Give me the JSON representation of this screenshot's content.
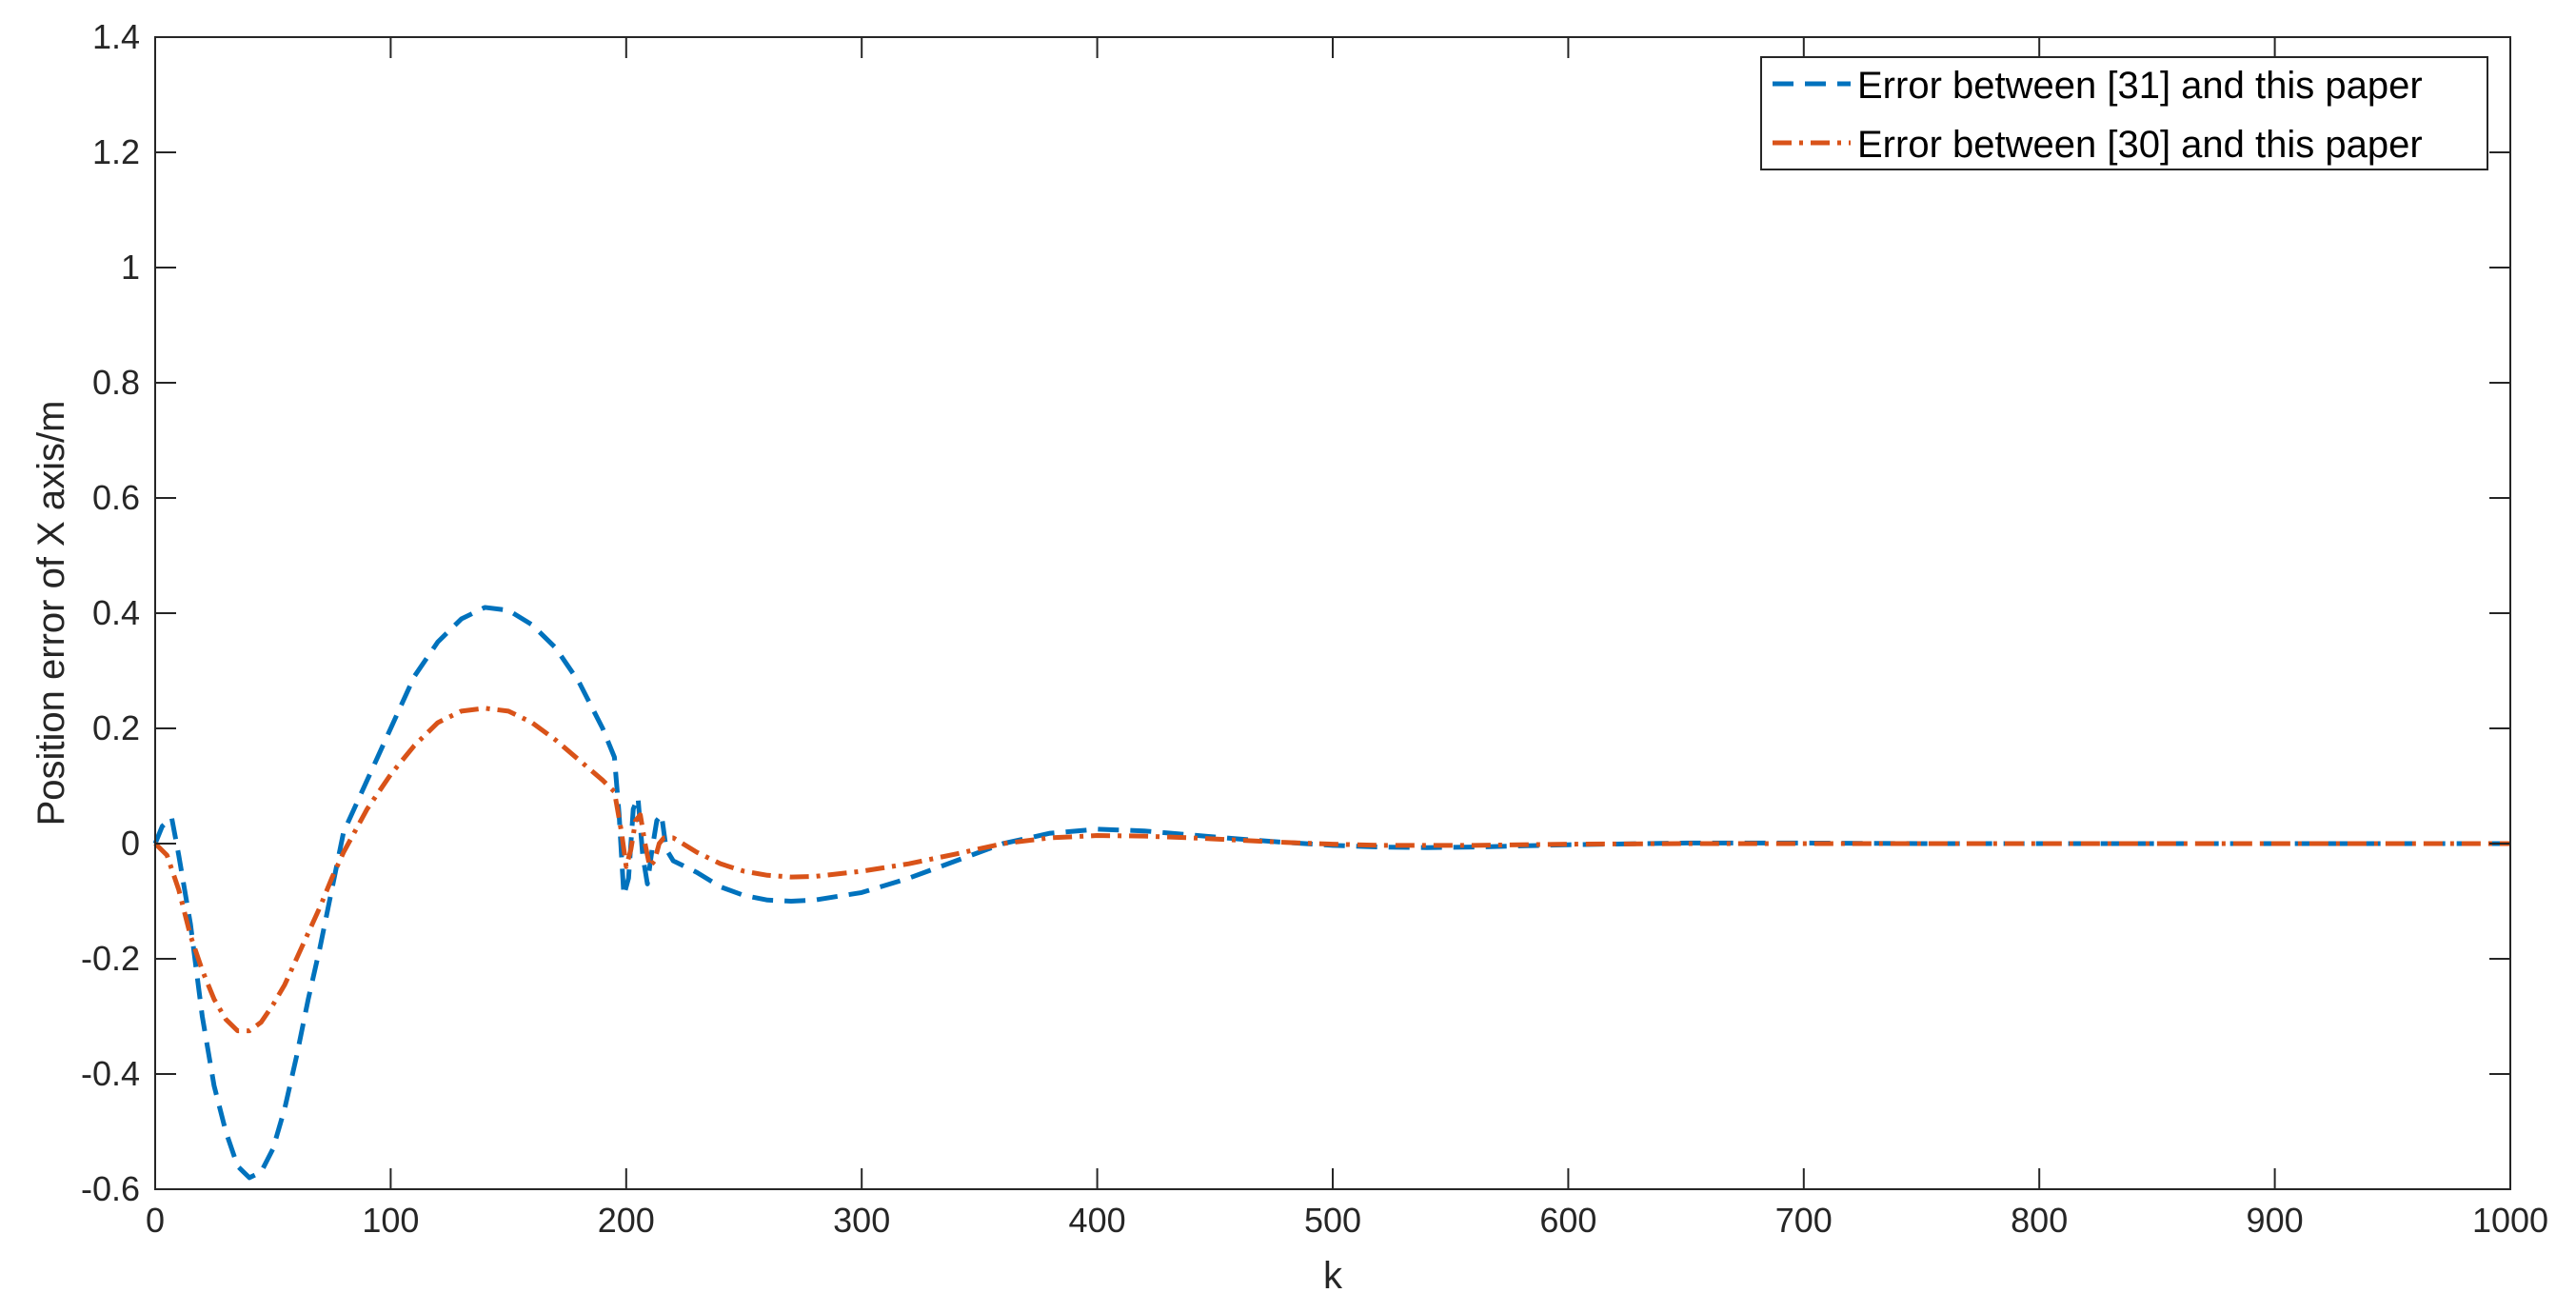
{
  "chart_data": {
    "type": "line",
    "title": "",
    "xlabel": "k",
    "ylabel": "Position error of X axis/m",
    "xlim": [
      0,
      1000
    ],
    "ylim": [
      -0.6,
      1.4
    ],
    "xticks": [
      0,
      100,
      200,
      300,
      400,
      500,
      600,
      700,
      800,
      900,
      1000
    ],
    "yticks": [
      -0.6,
      -0.4,
      -0.2,
      0,
      0.2,
      0.4,
      0.6,
      0.8,
      1,
      1.2,
      1.4
    ],
    "xtick_labels": [
      "0",
      "100",
      "200",
      "300",
      "400",
      "500",
      "600",
      "700",
      "800",
      "900",
      "1000"
    ],
    "ytick_labels": [
      "-0.6",
      "-0.4",
      "-0.2",
      "0",
      "0.2",
      "0.4",
      "0.6",
      "0.8",
      "1",
      "1.2",
      "1.4"
    ],
    "grid": false,
    "legend_position": "top-right",
    "series": [
      {
        "name": "Error between [31] and this paper",
        "color": "#0072BD",
        "line_style": "dashed",
        "points": [
          [
            0,
            0
          ],
          [
            3,
            0.03
          ],
          [
            7,
            0.045
          ],
          [
            10,
            -0.02
          ],
          [
            15,
            -0.14
          ],
          [
            20,
            -0.3
          ],
          [
            25,
            -0.42
          ],
          [
            30,
            -0.5
          ],
          [
            35,
            -0.56
          ],
          [
            40,
            -0.58
          ],
          [
            45,
            -0.57
          ],
          [
            50,
            -0.53
          ],
          [
            55,
            -0.46
          ],
          [
            60,
            -0.37
          ],
          [
            65,
            -0.27
          ],
          [
            70,
            -0.18
          ],
          [
            75,
            -0.08
          ],
          [
            80,
            0.02
          ],
          [
            90,
            0.11
          ],
          [
            100,
            0.2
          ],
          [
            110,
            0.29
          ],
          [
            120,
            0.35
          ],
          [
            130,
            0.39
          ],
          [
            140,
            0.41
          ],
          [
            150,
            0.405
          ],
          [
            160,
            0.38
          ],
          [
            170,
            0.34
          ],
          [
            180,
            0.28
          ],
          [
            190,
            0.2
          ],
          [
            195,
            0.15
          ],
          [
            197,
            0.05
          ],
          [
            199,
            -0.09
          ],
          [
            201,
            -0.06
          ],
          [
            203,
            0.06
          ],
          [
            205,
            0.08
          ],
          [
            207,
            -0.02
          ],
          [
            209,
            -0.07
          ],
          [
            211,
            -0.01
          ],
          [
            213,
            0.04
          ],
          [
            215,
            0.05
          ],
          [
            217,
            -0.01
          ],
          [
            220,
            -0.03
          ],
          [
            230,
            -0.05
          ],
          [
            240,
            -0.075
          ],
          [
            250,
            -0.09
          ],
          [
            260,
            -0.098
          ],
          [
            270,
            -0.1
          ],
          [
            280,
            -0.098
          ],
          [
            300,
            -0.085
          ],
          [
            320,
            -0.06
          ],
          [
            340,
            -0.03
          ],
          [
            360,
            0.0
          ],
          [
            380,
            0.018
          ],
          [
            400,
            0.025
          ],
          [
            420,
            0.022
          ],
          [
            440,
            0.015
          ],
          [
            460,
            0.008
          ],
          [
            480,
            0.002
          ],
          [
            500,
            -0.003
          ],
          [
            520,
            -0.006
          ],
          [
            540,
            -0.007
          ],
          [
            560,
            -0.006
          ],
          [
            580,
            -0.004
          ],
          [
            600,
            -0.002
          ],
          [
            650,
            0.001
          ],
          [
            700,
            0.001
          ],
          [
            750,
            0.0
          ],
          [
            800,
            0.0
          ],
          [
            900,
            0.0
          ],
          [
            1000,
            0.0
          ]
        ]
      },
      {
        "name": "Error between [30] and this paper",
        "color": "#D95319",
        "line_style": "dash-dot",
        "points": [
          [
            0,
            0
          ],
          [
            5,
            -0.02
          ],
          [
            10,
            -0.08
          ],
          [
            15,
            -0.16
          ],
          [
            20,
            -0.22
          ],
          [
            25,
            -0.27
          ],
          [
            30,
            -0.305
          ],
          [
            35,
            -0.325
          ],
          [
            40,
            -0.325
          ],
          [
            45,
            -0.31
          ],
          [
            50,
            -0.28
          ],
          [
            55,
            -0.245
          ],
          [
            60,
            -0.2
          ],
          [
            65,
            -0.155
          ],
          [
            70,
            -0.11
          ],
          [
            75,
            -0.06
          ],
          [
            80,
            -0.015
          ],
          [
            90,
            0.06
          ],
          [
            100,
            0.12
          ],
          [
            110,
            0.17
          ],
          [
            120,
            0.21
          ],
          [
            130,
            0.23
          ],
          [
            140,
            0.235
          ],
          [
            150,
            0.23
          ],
          [
            160,
            0.21
          ],
          [
            170,
            0.18
          ],
          [
            180,
            0.145
          ],
          [
            190,
            0.11
          ],
          [
            195,
            0.09
          ],
          [
            198,
            0.02
          ],
          [
            200,
            -0.04
          ],
          [
            202,
            -0.01
          ],
          [
            204,
            0.04
          ],
          [
            206,
            0.05
          ],
          [
            208,
            0.0
          ],
          [
            210,
            -0.04
          ],
          [
            212,
            -0.03
          ],
          [
            214,
            0.0
          ],
          [
            216,
            0.01
          ],
          [
            220,
            0.01
          ],
          [
            230,
            -0.015
          ],
          [
            240,
            -0.035
          ],
          [
            250,
            -0.048
          ],
          [
            260,
            -0.055
          ],
          [
            270,
            -0.058
          ],
          [
            280,
            -0.057
          ],
          [
            300,
            -0.048
          ],
          [
            320,
            -0.035
          ],
          [
            340,
            -0.018
          ],
          [
            360,
            0.0
          ],
          [
            380,
            0.01
          ],
          [
            400,
            0.014
          ],
          [
            420,
            0.013
          ],
          [
            440,
            0.01
          ],
          [
            460,
            0.006
          ],
          [
            480,
            0.002
          ],
          [
            500,
            -0.001
          ],
          [
            520,
            -0.003
          ],
          [
            540,
            -0.003
          ],
          [
            560,
            -0.003
          ],
          [
            600,
            -0.001
          ],
          [
            650,
            0.0
          ],
          [
            700,
            0.0
          ],
          [
            800,
            0.0
          ],
          [
            900,
            0.0
          ],
          [
            1000,
            0.0
          ]
        ]
      }
    ]
  }
}
